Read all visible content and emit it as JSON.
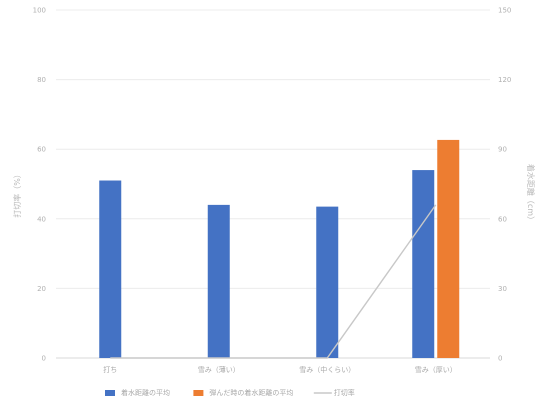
{
  "chart_data": {
    "type": "bar",
    "categories": [
      "打ち",
      "雪み（薄い）",
      "雪み（中くらい）",
      "雪み（厚い）"
    ],
    "series": [
      {
        "name": "着水距離の平均",
        "kind": "bar",
        "axis": "left",
        "color": "#4472C4",
        "values": [
          51,
          44,
          43.5,
          54
        ]
      },
      {
        "name": "弾んだ時の着水距離の平均",
        "kind": "bar",
        "axis": "right",
        "color": "#ED7D31",
        "values": [
          null,
          null,
          null,
          94
        ]
      },
      {
        "name": "打切率",
        "kind": "line",
        "axis": "left",
        "color": "#c8c8c8",
        "values": [
          0,
          0,
          0,
          44
        ]
      }
    ],
    "y_left": {
      "label": "打切率（%）",
      "range": [
        0,
        100
      ],
      "ticks": [
        "0",
        "20",
        "40",
        "60",
        "80",
        "100"
      ]
    },
    "y_right": {
      "label": "着水距離（cm）",
      "range": [
        0,
        150
      ],
      "ticks": [
        "0",
        "30",
        "60",
        "90",
        "120",
        "150"
      ]
    },
    "grid": true,
    "legend_position": "bottom"
  }
}
